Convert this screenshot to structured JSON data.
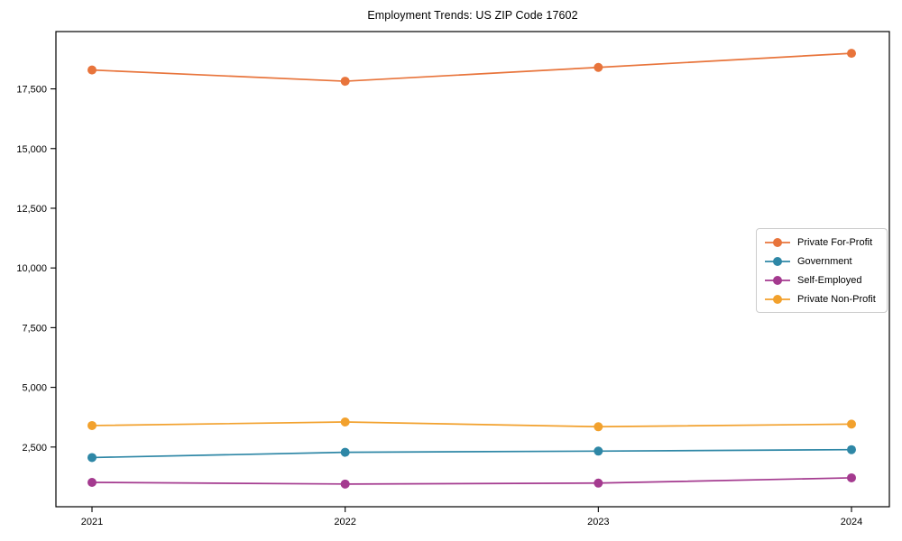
{
  "figure": {
    "background": "#ffffff",
    "axis_color": "#000000",
    "tick_label_color": "#000000"
  },
  "chart_data": {
    "type": "line",
    "title": "Employment Trends: US ZIP Code 17602",
    "xlabel": "",
    "ylabel": "",
    "grid": false,
    "legend_position": "center-right",
    "x": [
      2021,
      2022,
      2023,
      2024
    ],
    "x_tick_labels": [
      "2021",
      "2022",
      "2023",
      "2024"
    ],
    "ylim": [
      0,
      19900
    ],
    "yticks": [
      2500,
      5000,
      7500,
      10000,
      12500,
      15000,
      17500
    ],
    "ytick_labels": [
      "2,500",
      "5,000",
      "7,500",
      "10,000",
      "12,500",
      "15,000",
      "17,500"
    ],
    "series": [
      {
        "name": "Private For-Profit",
        "color": "#E8743B",
        "values": [
          18290,
          17820,
          18400,
          18990
        ]
      },
      {
        "name": "Government",
        "color": "#2E87A6",
        "values": [
          2060,
          2280,
          2330,
          2390
        ]
      },
      {
        "name": "Self-Employed",
        "color": "#A43A8F",
        "values": [
          1020,
          950,
          990,
          1210
        ]
      },
      {
        "name": "Private Non-Profit",
        "color": "#F2A12D",
        "values": [
          3400,
          3550,
          3350,
          3460
        ]
      }
    ]
  }
}
